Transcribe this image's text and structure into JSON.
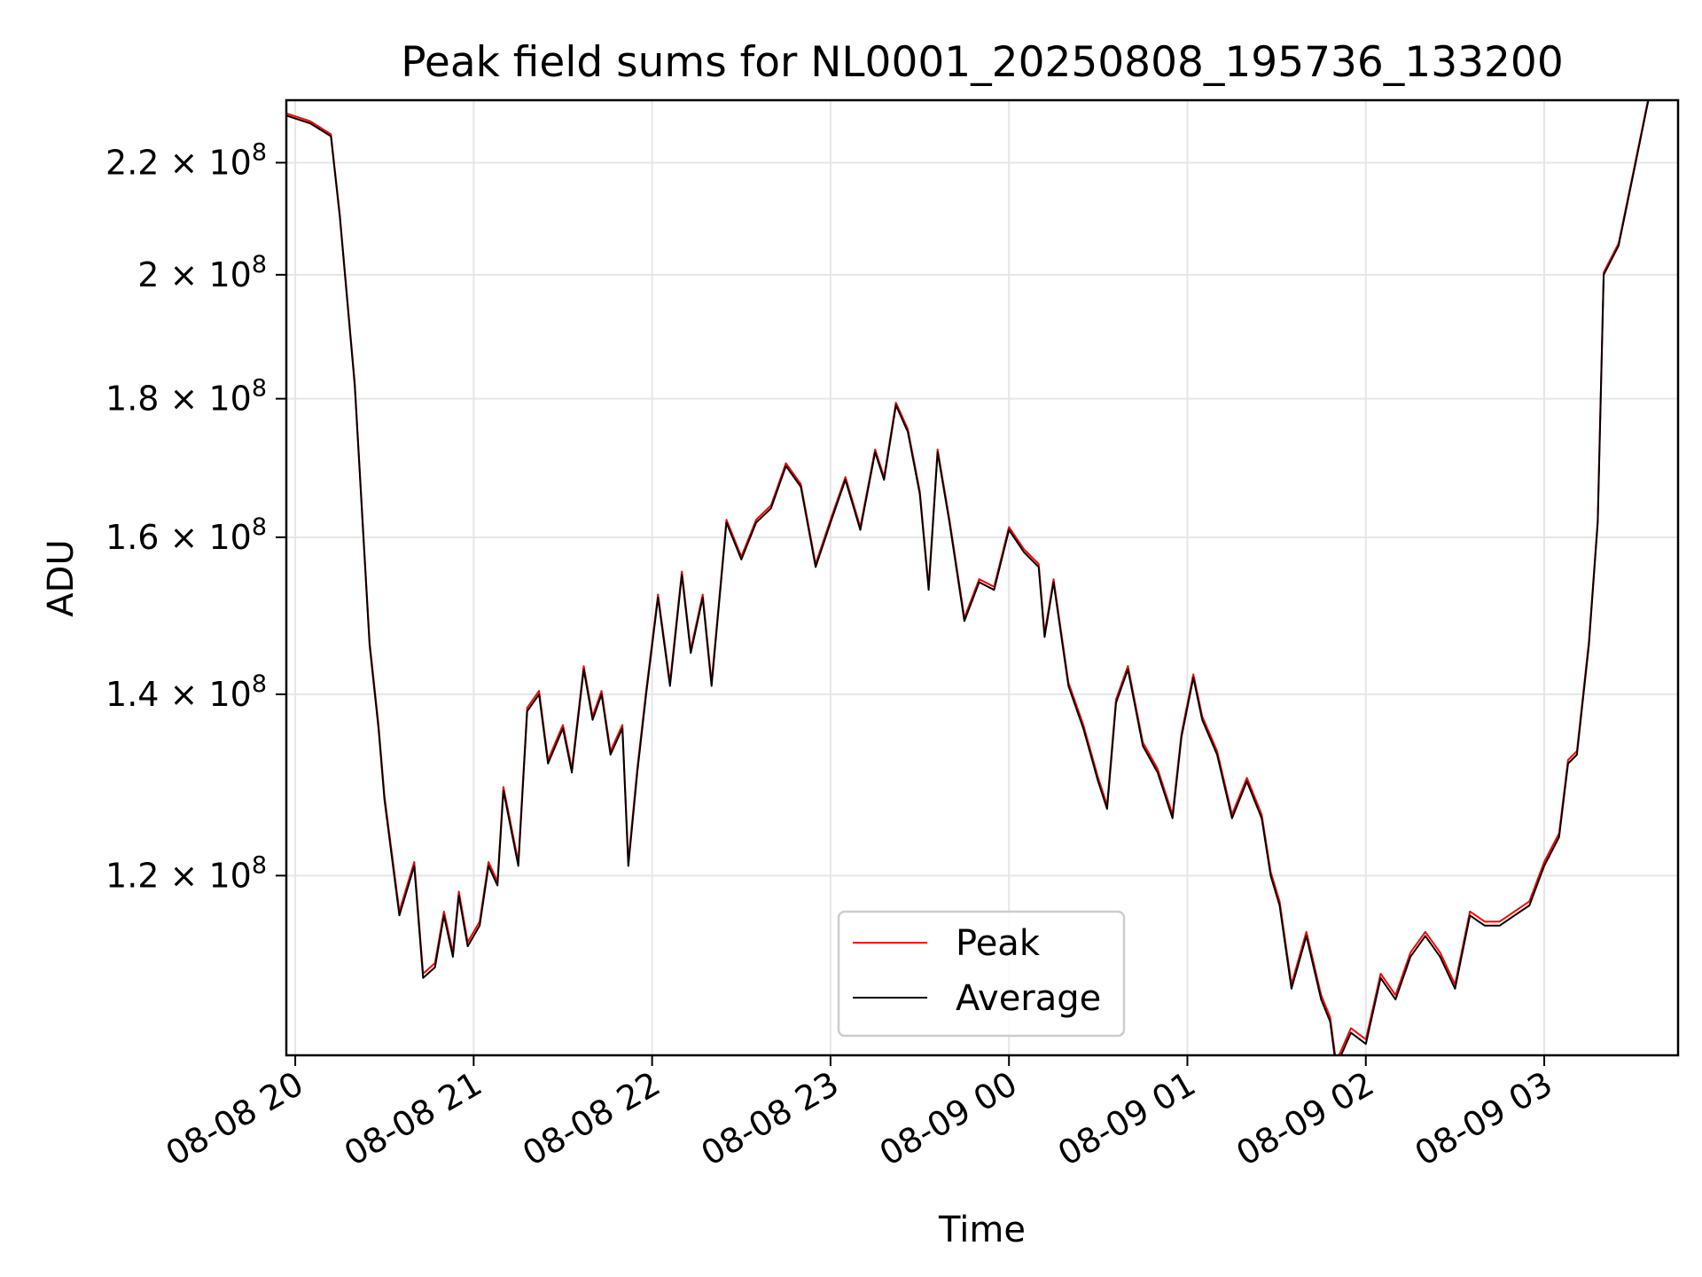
{
  "chart_data": {
    "type": "line",
    "title": "Peak field sums for NL0001_20250808_195736_133200",
    "xlabel": "Time",
    "ylabel": "ADU",
    "y_scale": "log",
    "grid": true,
    "legend_position": "lower-center",
    "xlim": [
      "2025-08-08 19:57",
      "2025-08-09 03:45"
    ],
    "ylim": [
      103000000,
      232000000
    ],
    "x_ticks": [
      {
        "label": "08-08 20",
        "value": "2025-08-08 20:00"
      },
      {
        "label": "08-08 21",
        "value": "2025-08-08 21:00"
      },
      {
        "label": "08-08 22",
        "value": "2025-08-08 22:00"
      },
      {
        "label": "08-08 23",
        "value": "2025-08-08 23:00"
      },
      {
        "label": "08-09 00",
        "value": "2025-08-09 00:00"
      },
      {
        "label": "08-09 01",
        "value": "2025-08-09 01:00"
      },
      {
        "label": "08-09 02",
        "value": "2025-08-09 02:00"
      },
      {
        "label": "08-09 03",
        "value": "2025-08-09 03:00"
      }
    ],
    "y_ticks": [
      {
        "mantissa": "1.2",
        "value": 120000000
      },
      {
        "mantissa": "1.4",
        "value": 140000000
      },
      {
        "mantissa": "1.6",
        "value": 160000000
      },
      {
        "mantissa": "1.8",
        "value": 180000000
      },
      {
        "mantissa": "2",
        "value": 200000000
      },
      {
        "mantissa": "2.2",
        "value": 220000000
      }
    ],
    "y_tick_base": "10",
    "y_tick_exponent": "8",
    "series": [
      {
        "name": "Peak",
        "color": "#ff0000",
        "offset": 400000
      },
      {
        "name": "Average",
        "color": "#000000",
        "offset": 0
      }
    ],
    "x": [
      "2025-08-08 19:57",
      "2025-08-08 20:05",
      "2025-08-08 20:12",
      "2025-08-08 20:15",
      "2025-08-08 20:20",
      "2025-08-08 20:25",
      "2025-08-08 20:28",
      "2025-08-08 20:30",
      "2025-08-08 20:35",
      "2025-08-08 20:40",
      "2025-08-08 20:43",
      "2025-08-08 20:47",
      "2025-08-08 20:50",
      "2025-08-08 20:53",
      "2025-08-08 20:55",
      "2025-08-08 20:58",
      "2025-08-08 21:02",
      "2025-08-08 21:05",
      "2025-08-08 21:08",
      "2025-08-08 21:10",
      "2025-08-08 21:15",
      "2025-08-08 21:18",
      "2025-08-08 21:22",
      "2025-08-08 21:25",
      "2025-08-08 21:30",
      "2025-08-08 21:33",
      "2025-08-08 21:37",
      "2025-08-08 21:40",
      "2025-08-08 21:43",
      "2025-08-08 21:46",
      "2025-08-08 21:50",
      "2025-08-08 21:52",
      "2025-08-08 21:55",
      "2025-08-08 21:58",
      "2025-08-08 22:02",
      "2025-08-08 22:06",
      "2025-08-08 22:10",
      "2025-08-08 22:13",
      "2025-08-08 22:17",
      "2025-08-08 22:20",
      "2025-08-08 22:25",
      "2025-08-08 22:30",
      "2025-08-08 22:35",
      "2025-08-08 22:40",
      "2025-08-08 22:45",
      "2025-08-08 22:50",
      "2025-08-08 22:55",
      "2025-08-08 23:00",
      "2025-08-08 23:05",
      "2025-08-08 23:10",
      "2025-08-08 23:15",
      "2025-08-08 23:18",
      "2025-08-08 23:22",
      "2025-08-08 23:26",
      "2025-08-08 23:30",
      "2025-08-08 23:33",
      "2025-08-08 23:36",
      "2025-08-08 23:40",
      "2025-08-08 23:45",
      "2025-08-08 23:50",
      "2025-08-08 23:55",
      "2025-08-09 00:00",
      "2025-08-09 00:05",
      "2025-08-09 00:10",
      "2025-08-09 00:12",
      "2025-08-09 00:15",
      "2025-08-09 00:20",
      "2025-08-09 00:25",
      "2025-08-09 00:30",
      "2025-08-09 00:33",
      "2025-08-09 00:36",
      "2025-08-09 00:40",
      "2025-08-09 00:45",
      "2025-08-09 00:50",
      "2025-08-09 00:55",
      "2025-08-09 00:58",
      "2025-08-09 01:02",
      "2025-08-09 01:05",
      "2025-08-09 01:10",
      "2025-08-09 01:15",
      "2025-08-09 01:20",
      "2025-08-09 01:25",
      "2025-08-09 01:28",
      "2025-08-09 01:31",
      "2025-08-09 01:35",
      "2025-08-09 01:40",
      "2025-08-09 01:45",
      "2025-08-09 01:48",
      "2025-08-09 01:50",
      "2025-08-09 01:55",
      "2025-08-09 02:00",
      "2025-08-09 02:05",
      "2025-08-09 02:10",
      "2025-08-09 02:15",
      "2025-08-09 02:20",
      "2025-08-09 02:25",
      "2025-08-09 02:30",
      "2025-08-09 02:35",
      "2025-08-09 02:40",
      "2025-08-09 02:45",
      "2025-08-09 02:50",
      "2025-08-09 02:55",
      "2025-08-09 03:00",
      "2025-08-09 03:05",
      "2025-08-09 03:08",
      "2025-08-09 03:11",
      "2025-08-09 03:15",
      "2025-08-09 03:18",
      "2025-08-09 03:20",
      "2025-08-09 03:25",
      "2025-08-09 03:30",
      "2025-08-09 03:35",
      "2025-08-09 03:40"
    ],
    "values": [
      229000000,
      227500000,
      225000000,
      210000000,
      182000000,
      146000000,
      136000000,
      128000000,
      116000000,
      121000000,
      110000000,
      111000000,
      116000000,
      112000000,
      118000000,
      113000000,
      115000000,
      121000000,
      119000000,
      129000000,
      121000000,
      138000000,
      140000000,
      132000000,
      136000000,
      131000000,
      143000000,
      137000000,
      140000000,
      133000000,
      136000000,
      121000000,
      131000000,
      140000000,
      152000000,
      141000000,
      155000000,
      145000000,
      152000000,
      141000000,
      162000000,
      157000000,
      162000000,
      164000000,
      170000000,
      167000000,
      156000000,
      162000000,
      168000000,
      161000000,
      172000000,
      168000000,
      179000000,
      175000000,
      166000000,
      153000000,
      172000000,
      162000000,
      149000000,
      154000000,
      153000000,
      161000000,
      158000000,
      156000000,
      147000000,
      154000000,
      141000000,
      136000000,
      130000000,
      127000000,
      139000000,
      143000000,
      134000000,
      131000000,
      126000000,
      135000000,
      142000000,
      137000000,
      133000000,
      126000000,
      130000000,
      126000000,
      120000000,
      117000000,
      109000000,
      114000000,
      108000000,
      106000000,
      102000000,
      105000000,
      104000000,
      110000000,
      108000000,
      112000000,
      114000000,
      112000000,
      109000000,
      116000000,
      115000000,
      115000000,
      116000000,
      117000000,
      121000000,
      124000000,
      132000000,
      133000000,
      146000000,
      162000000,
      200000000,
      205000000,
      218000000,
      232000000,
      240000000
    ]
  }
}
